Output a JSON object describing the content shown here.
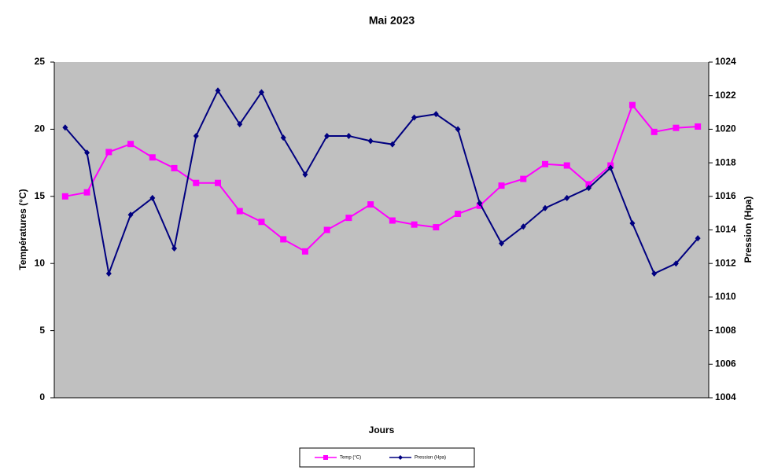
{
  "chart_data": {
    "type": "line",
    "title": "Mai 2023",
    "x_label": "Jours",
    "y_label": "Températures (°C)",
    "y2_label": "Pression (Hpa)",
    "categories": [
      null,
      null,
      null,
      null,
      null,
      null,
      null,
      null,
      null,
      null,
      null,
      null,
      null,
      null,
      null,
      null,
      null,
      null,
      null,
      null,
      null,
      null,
      null,
      null,
      null,
      null,
      null,
      null,
      null,
      null
    ],
    "series": [
      {
        "name": "Temp (°C)",
        "color": "#ff00ff",
        "marker": "square",
        "values": [
          15.0,
          15.3,
          18.3,
          18.9,
          17.9,
          17.1,
          16.0,
          16.0,
          13.9,
          13.1,
          11.8,
          10.9,
          12.5,
          13.4,
          14.4,
          13.2,
          12.9,
          12.7,
          13.7,
          14.3,
          15.8,
          16.3,
          17.4,
          17.3,
          15.9,
          17.3,
          21.8,
          19.8,
          20.1,
          20.2
        ]
      },
      {
        "name": "Pression (Hpa)",
        "color": "#000080",
        "marker": "diamond",
        "axis": "y2",
        "values": [
          1020.1,
          1018.6,
          1011.4,
          1014.9,
          1015.9,
          1012.9,
          1019.6,
          1022.3,
          1020.3,
          1022.2,
          1019.5,
          1017.3,
          1019.6,
          1019.6,
          1019.3,
          1019.1,
          1020.7,
          1020.9,
          1020.0,
          1015.6,
          1013.2,
          1014.2,
          1015.3,
          1015.9,
          1016.5,
          1017.7,
          1014.4,
          1011.4,
          1012.0,
          1013.5
        ]
      }
    ],
    "ylim": [
      0,
      25
    ],
    "yticks": [
      0,
      5,
      10,
      15,
      20,
      25
    ],
    "y2lim": [
      1004,
      1024
    ],
    "y2ticks": [
      1004,
      1006,
      1008,
      1010,
      1012,
      1014,
      1016,
      1018,
      1020,
      1022,
      1024
    ],
    "plot_background": "#c0c0c0",
    "legend": "bottom"
  }
}
